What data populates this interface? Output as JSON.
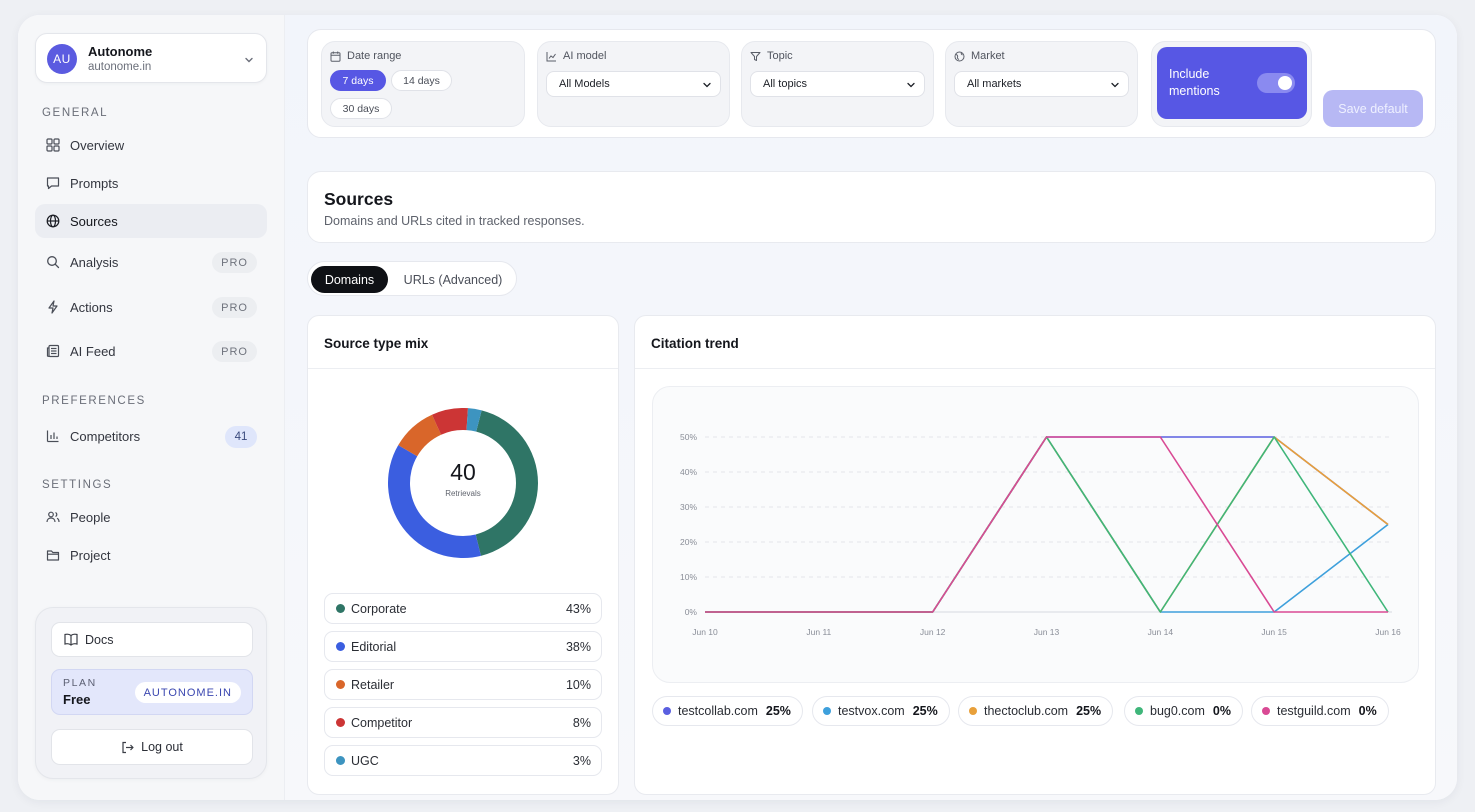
{
  "workspace": {
    "avatar": "AU",
    "name": "Autonome",
    "domain": "autonome.in"
  },
  "sidebar": {
    "general_title": "GENERAL",
    "general_items": [
      {
        "label": "Overview",
        "icon": "grid-icon"
      },
      {
        "label": "Prompts",
        "icon": "message-icon"
      },
      {
        "label": "Sources",
        "icon": "globe-icon",
        "active": true
      },
      {
        "label": "Analysis",
        "icon": "search-icon",
        "badge": "PRO"
      },
      {
        "label": "Actions",
        "icon": "bolt-icon",
        "badge": "PRO"
      },
      {
        "label": "AI Feed",
        "icon": "feed-icon",
        "badge": "PRO"
      }
    ],
    "preferences_title": "PREFERENCES",
    "competitors": {
      "label": "Competitors",
      "count": "41"
    },
    "settings_title": "SETTINGS",
    "settings_items": [
      {
        "label": "People",
        "icon": "people-icon"
      },
      {
        "label": "Project",
        "icon": "folder-icon"
      }
    ],
    "docs_label": "Docs",
    "plan_label": "PLAN",
    "plan_value": "Free",
    "plan_chip": "AUTONOME.IN",
    "logout_label": "Log out"
  },
  "filters": {
    "date_range": {
      "label": "Date range",
      "options": [
        "7 days",
        "14 days",
        "30 days"
      ],
      "selected": "7 days"
    },
    "ai_model": {
      "label": "AI model",
      "value": "All Models"
    },
    "topic": {
      "label": "Topic",
      "value": "All topics"
    },
    "market": {
      "label": "Market",
      "value": "All markets"
    },
    "include_mentions": {
      "label": "Include mentions",
      "on": true
    },
    "save_default": "Save default"
  },
  "page": {
    "title": "Sources",
    "subtitle": "Domains and URLs cited in tracked responses.",
    "tabs": [
      "Domains",
      "URLs (Advanced)"
    ],
    "active_tab": "Domains"
  },
  "source_mix": {
    "title": "Source type mix",
    "total": "40",
    "total_label": "Retrievals"
  },
  "trend": {
    "title": "Citation trend"
  },
  "chart_data": [
    {
      "type": "pie",
      "title": "Source type mix",
      "center_value": "40",
      "center_label": "Retrievals",
      "slices": [
        {
          "label": "Corporate",
          "pct": "43%",
          "value": 43,
          "color": "#2f7566"
        },
        {
          "label": "Editorial",
          "pct": "38%",
          "value": 38,
          "color": "#3b5ee0"
        },
        {
          "label": "Retailer",
          "pct": "10%",
          "value": 10,
          "color": "#d9662a"
        },
        {
          "label": "Competitor",
          "pct": "8%",
          "value": 8,
          "color": "#cc3535"
        },
        {
          "label": "UGC",
          "pct": "3%",
          "value": 3,
          "color": "#3d94c0"
        }
      ]
    },
    {
      "type": "line",
      "title": "Citation trend",
      "categories": [
        "Jun 10",
        "Jun 11",
        "Jun 12",
        "Jun 13",
        "Jun 14",
        "Jun 15",
        "Jun 16"
      ],
      "ylim": [
        0,
        50
      ],
      "yticks": [
        "0%",
        "10%",
        "20%",
        "30%",
        "40%",
        "50%"
      ],
      "grid": true,
      "series": [
        {
          "name": "testcollab.com",
          "total": "25%",
          "color": "#5a5fe0",
          "values": [
            0,
            0,
            0,
            50,
            50,
            50,
            25
          ]
        },
        {
          "name": "testvox.com",
          "total": "25%",
          "color": "#3ea0dc",
          "values": [
            0,
            0,
            0,
            50,
            0,
            0,
            25
          ]
        },
        {
          "name": "thectoclub.com",
          "total": "25%",
          "color": "#e8a03a",
          "values": [
            0,
            0,
            0,
            50,
            0,
            50,
            25
          ]
        },
        {
          "name": "bug0.com",
          "total": "0%",
          "color": "#3fb67a",
          "values": [
            0,
            0,
            0,
            50,
            0,
            50,
            0
          ]
        },
        {
          "name": "testguild.com",
          "total": "0%",
          "color": "#d94a94",
          "values": [
            0,
            0,
            0,
            50,
            50,
            0,
            0
          ]
        }
      ]
    }
  ]
}
